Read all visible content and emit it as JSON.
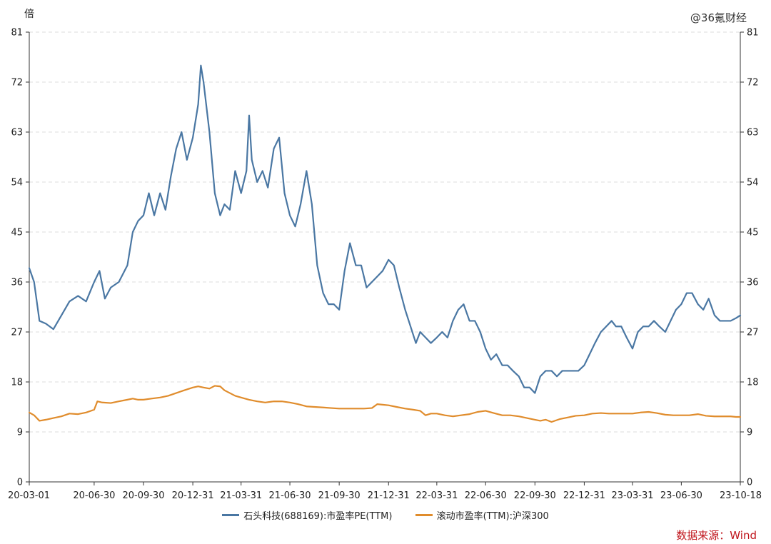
{
  "watermark": "@36氪财经",
  "source_text": "数据来源：Wind",
  "chart_data": {
    "type": "line",
    "y_unit": "倍",
    "ylim": [
      0,
      81
    ],
    "yticks": [
      0,
      9,
      18,
      27,
      36,
      45,
      54,
      63,
      72,
      81
    ],
    "grid": true,
    "legend_position": "bottom",
    "x_tick_labels": [
      "20-03-01",
      "20-06-30",
      "20-09-30",
      "20-12-31",
      "21-03-31",
      "21-06-30",
      "21-09-30",
      "21-12-31",
      "22-03-31",
      "22-06-30",
      "22-09-30",
      "22-12-31",
      "23-03-31",
      "23-06-30",
      "23-10-18"
    ],
    "series": [
      {
        "name": "石头科技(688169):市盈率PE(TTM)",
        "color": "#4a77a3",
        "points": [
          [
            "20-03-01",
            38.5
          ],
          [
            "20-03-10",
            36
          ],
          [
            "20-03-20",
            29
          ],
          [
            "20-04-01",
            28.5
          ],
          [
            "20-04-15",
            27.5
          ],
          [
            "20-04-30",
            30
          ],
          [
            "20-05-15",
            32.5
          ],
          [
            "20-05-31",
            33.5
          ],
          [
            "20-06-15",
            32.5
          ],
          [
            "20-06-30",
            36
          ],
          [
            "20-07-10",
            38
          ],
          [
            "20-07-20",
            33
          ],
          [
            "20-07-31",
            35
          ],
          [
            "20-08-15",
            36
          ],
          [
            "20-08-31",
            39
          ],
          [
            "20-09-10",
            45
          ],
          [
            "20-09-20",
            47
          ],
          [
            "20-09-30",
            48
          ],
          [
            "20-10-10",
            52
          ],
          [
            "20-10-20",
            48
          ],
          [
            "20-10-31",
            52
          ],
          [
            "20-11-10",
            49
          ],
          [
            "20-11-20",
            55
          ],
          [
            "20-11-30",
            60
          ],
          [
            "20-12-10",
            63
          ],
          [
            "20-12-20",
            58
          ],
          [
            "20-12-31",
            62
          ],
          [
            "21-01-10",
            68
          ],
          [
            "21-01-15",
            75
          ],
          [
            "21-01-20",
            72
          ],
          [
            "21-01-31",
            63
          ],
          [
            "21-02-10",
            52
          ],
          [
            "21-02-20",
            48
          ],
          [
            "21-02-28",
            50
          ],
          [
            "21-03-10",
            49
          ],
          [
            "21-03-20",
            56
          ],
          [
            "21-03-31",
            52
          ],
          [
            "21-04-10",
            56
          ],
          [
            "21-04-15",
            66
          ],
          [
            "21-04-20",
            58
          ],
          [
            "21-04-30",
            54
          ],
          [
            "21-05-10",
            56
          ],
          [
            "21-05-20",
            53
          ],
          [
            "21-05-31",
            60
          ],
          [
            "21-06-10",
            62
          ],
          [
            "21-06-20",
            52
          ],
          [
            "21-06-30",
            48
          ],
          [
            "21-07-10",
            46
          ],
          [
            "21-07-20",
            50
          ],
          [
            "21-07-31",
            56
          ],
          [
            "21-08-10",
            50
          ],
          [
            "21-08-20",
            39
          ],
          [
            "21-08-31",
            34
          ],
          [
            "21-09-10",
            32
          ],
          [
            "21-09-20",
            32
          ],
          [
            "21-09-30",
            31
          ],
          [
            "21-10-10",
            38
          ],
          [
            "21-10-20",
            43
          ],
          [
            "21-10-31",
            39
          ],
          [
            "21-11-10",
            39
          ],
          [
            "21-11-20",
            35
          ],
          [
            "21-11-30",
            36
          ],
          [
            "21-12-10",
            37
          ],
          [
            "21-12-20",
            38
          ],
          [
            "21-12-31",
            40
          ],
          [
            "22-01-10",
            39
          ],
          [
            "22-01-20",
            35
          ],
          [
            "22-01-31",
            31
          ],
          [
            "22-02-10",
            28
          ],
          [
            "22-02-20",
            25
          ],
          [
            "22-02-28",
            27
          ],
          [
            "22-03-10",
            26
          ],
          [
            "22-03-20",
            25
          ],
          [
            "22-03-31",
            26
          ],
          [
            "22-04-10",
            27
          ],
          [
            "22-04-20",
            26
          ],
          [
            "22-04-30",
            29
          ],
          [
            "22-05-10",
            31
          ],
          [
            "22-05-20",
            32
          ],
          [
            "22-05-31",
            29
          ],
          [
            "22-06-10",
            29
          ],
          [
            "22-06-20",
            27
          ],
          [
            "22-06-30",
            24
          ],
          [
            "22-07-10",
            22
          ],
          [
            "22-07-20",
            23
          ],
          [
            "22-07-31",
            21
          ],
          [
            "22-08-10",
            21
          ],
          [
            "22-08-20",
            20
          ],
          [
            "22-08-31",
            19
          ],
          [
            "22-09-10",
            17
          ],
          [
            "22-09-20",
            17
          ],
          [
            "22-09-30",
            16
          ],
          [
            "22-10-10",
            19
          ],
          [
            "22-10-20",
            20
          ],
          [
            "22-10-31",
            20
          ],
          [
            "22-11-10",
            19
          ],
          [
            "22-11-20",
            20
          ],
          [
            "22-11-30",
            20
          ],
          [
            "22-12-10",
            20
          ],
          [
            "22-12-20",
            20
          ],
          [
            "22-12-31",
            21
          ],
          [
            "23-01-10",
            23
          ],
          [
            "23-01-20",
            25
          ],
          [
            "23-01-31",
            27
          ],
          [
            "23-02-10",
            28
          ],
          [
            "23-02-20",
            29
          ],
          [
            "23-02-28",
            28
          ],
          [
            "23-03-10",
            28
          ],
          [
            "23-03-20",
            26
          ],
          [
            "23-03-31",
            24
          ],
          [
            "23-04-10",
            27
          ],
          [
            "23-04-20",
            28
          ],
          [
            "23-04-30",
            28
          ],
          [
            "23-05-10",
            29
          ],
          [
            "23-05-20",
            28
          ],
          [
            "23-05-31",
            27
          ],
          [
            "23-06-10",
            29
          ],
          [
            "23-06-20",
            31
          ],
          [
            "23-06-30",
            32
          ],
          [
            "23-07-10",
            34
          ],
          [
            "23-07-20",
            34
          ],
          [
            "23-07-31",
            32
          ],
          [
            "23-08-10",
            31
          ],
          [
            "23-08-20",
            33
          ],
          [
            "23-08-31",
            30
          ],
          [
            "23-09-10",
            29
          ],
          [
            "23-09-20",
            29
          ],
          [
            "23-09-30",
            29
          ],
          [
            "23-10-10",
            29.5
          ],
          [
            "23-10-18",
            30
          ]
        ]
      },
      {
        "name": "滚动市盈率(TTM):沪深300",
        "color": "#e08c2c",
        "points": [
          [
            "20-03-01",
            12.5
          ],
          [
            "20-03-10",
            12.0
          ],
          [
            "20-03-20",
            11.0
          ],
          [
            "20-04-01",
            11.2
          ],
          [
            "20-04-15",
            11.5
          ],
          [
            "20-04-30",
            11.8
          ],
          [
            "20-05-15",
            12.3
          ],
          [
            "20-05-31",
            12.2
          ],
          [
            "20-06-15",
            12.5
          ],
          [
            "20-06-30",
            13.0
          ],
          [
            "20-07-06",
            14.5
          ],
          [
            "20-07-15",
            14.3
          ],
          [
            "20-07-31",
            14.2
          ],
          [
            "20-08-15",
            14.5
          ],
          [
            "20-08-31",
            14.8
          ],
          [
            "20-09-10",
            15.0
          ],
          [
            "20-09-20",
            14.8
          ],
          [
            "20-09-30",
            14.8
          ],
          [
            "20-10-15",
            15.0
          ],
          [
            "20-10-31",
            15.2
          ],
          [
            "20-11-15",
            15.5
          ],
          [
            "20-11-30",
            16.0
          ],
          [
            "20-12-15",
            16.5
          ],
          [
            "20-12-31",
            17.0
          ],
          [
            "21-01-10",
            17.2
          ],
          [
            "21-01-20",
            17.0
          ],
          [
            "21-01-31",
            16.8
          ],
          [
            "21-02-10",
            17.3
          ],
          [
            "21-02-20",
            17.2
          ],
          [
            "21-02-28",
            16.5
          ],
          [
            "21-03-10",
            16.0
          ],
          [
            "21-03-20",
            15.5
          ],
          [
            "21-03-31",
            15.2
          ],
          [
            "21-04-15",
            14.8
          ],
          [
            "21-04-30",
            14.5
          ],
          [
            "21-05-15",
            14.3
          ],
          [
            "21-05-31",
            14.5
          ],
          [
            "21-06-15",
            14.5
          ],
          [
            "21-06-30",
            14.3
          ],
          [
            "21-07-15",
            14.0
          ],
          [
            "21-07-31",
            13.6
          ],
          [
            "21-08-15",
            13.5
          ],
          [
            "21-08-31",
            13.4
          ],
          [
            "21-09-15",
            13.3
          ],
          [
            "21-09-30",
            13.2
          ],
          [
            "21-10-15",
            13.2
          ],
          [
            "21-10-31",
            13.2
          ],
          [
            "21-11-15",
            13.2
          ],
          [
            "21-11-30",
            13.3
          ],
          [
            "21-12-10",
            14.0
          ],
          [
            "21-12-20",
            13.9
          ],
          [
            "21-12-31",
            13.8
          ],
          [
            "22-01-15",
            13.5
          ],
          [
            "22-01-31",
            13.2
          ],
          [
            "22-02-15",
            13.0
          ],
          [
            "22-02-28",
            12.8
          ],
          [
            "22-03-10",
            12.0
          ],
          [
            "22-03-20",
            12.3
          ],
          [
            "22-03-31",
            12.3
          ],
          [
            "22-04-15",
            12.0
          ],
          [
            "22-04-30",
            11.8
          ],
          [
            "22-05-15",
            12.0
          ],
          [
            "22-05-31",
            12.2
          ],
          [
            "22-06-15",
            12.6
          ],
          [
            "22-06-30",
            12.8
          ],
          [
            "22-07-15",
            12.4
          ],
          [
            "22-07-31",
            12.0
          ],
          [
            "22-08-15",
            12.0
          ],
          [
            "22-08-31",
            11.8
          ],
          [
            "22-09-15",
            11.5
          ],
          [
            "22-09-30",
            11.2
          ],
          [
            "22-10-10",
            11.0
          ],
          [
            "22-10-20",
            11.2
          ],
          [
            "22-10-31",
            10.8
          ],
          [
            "22-11-15",
            11.3
          ],
          [
            "22-11-30",
            11.6
          ],
          [
            "22-12-15",
            11.9
          ],
          [
            "22-12-31",
            12.0
          ],
          [
            "23-01-15",
            12.3
          ],
          [
            "23-01-31",
            12.4
          ],
          [
            "23-02-15",
            12.3
          ],
          [
            "23-02-28",
            12.3
          ],
          [
            "23-03-15",
            12.3
          ],
          [
            "23-03-31",
            12.3
          ],
          [
            "23-04-15",
            12.5
          ],
          [
            "23-04-30",
            12.6
          ],
          [
            "23-05-15",
            12.4
          ],
          [
            "23-05-31",
            12.1
          ],
          [
            "23-06-15",
            12.0
          ],
          [
            "23-06-30",
            12.0
          ],
          [
            "23-07-15",
            12.0
          ],
          [
            "23-07-31",
            12.2
          ],
          [
            "23-08-15",
            11.9
          ],
          [
            "23-08-31",
            11.8
          ],
          [
            "23-09-15",
            11.8
          ],
          [
            "23-09-30",
            11.8
          ],
          [
            "23-10-10",
            11.7
          ],
          [
            "23-10-18",
            11.7
          ]
        ]
      }
    ]
  }
}
